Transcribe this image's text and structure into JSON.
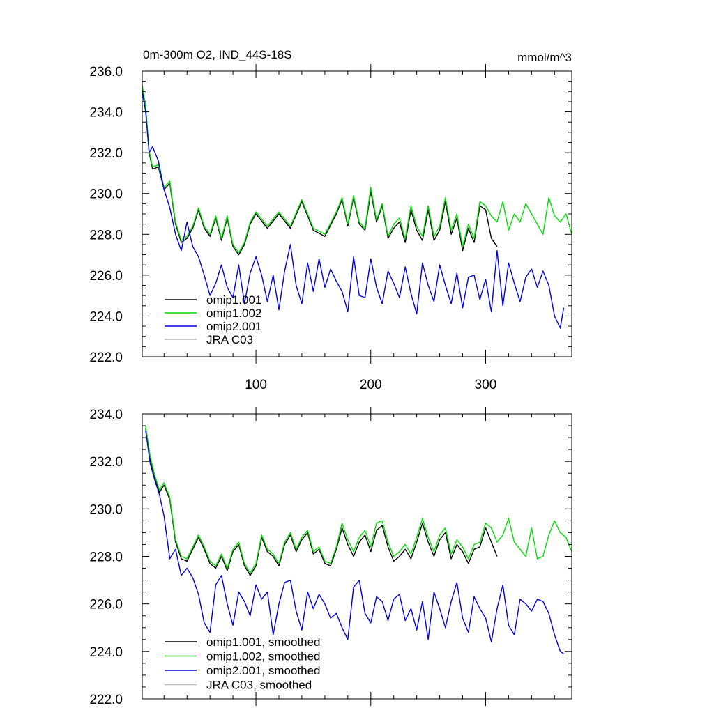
{
  "chart_data": [
    {
      "type": "line",
      "title": "0m-300m O2, IND_44S-18S",
      "units": "mmol/m^3",
      "ylim": [
        222.0,
        236.0
      ],
      "xlim": [
        1,
        375
      ],
      "yticks": [
        "222.0",
        "224.0",
        "226.0",
        "228.0",
        "230.0",
        "232.0",
        "234.0",
        "236.0"
      ],
      "xticks": [
        "100",
        "200",
        "300"
      ],
      "legend_position": "bottom-left",
      "series": [
        {
          "name": "omip1.001",
          "color": "#000000",
          "x": [
            1,
            4,
            7,
            10,
            15,
            20,
            25,
            30,
            35,
            40,
            45,
            50,
            55,
            60,
            65,
            70,
            75,
            80,
            85,
            90,
            95,
            100,
            110,
            120,
            130,
            140,
            150,
            160,
            170,
            175,
            180,
            185,
            190,
            195,
            200,
            205,
            210,
            215,
            220,
            225,
            230,
            235,
            240,
            245,
            250,
            255,
            260,
            265,
            270,
            275,
            280,
            285,
            290,
            295,
            300,
            305,
            310
          ],
          "values": [
            235.2,
            234.2,
            232.0,
            231.2,
            231.3,
            230.2,
            230.5,
            228.5,
            227.6,
            227.8,
            228.3,
            229.2,
            228.3,
            227.9,
            228.8,
            227.7,
            228.8,
            227.4,
            227.0,
            227.5,
            228.5,
            229.0,
            228.3,
            229.0,
            228.3,
            229.6,
            228.2,
            227.9,
            229.0,
            229.7,
            228.4,
            229.8,
            228.5,
            228.2,
            230.1,
            228.6,
            229.4,
            227.8,
            228.3,
            228.6,
            227.6,
            229.2,
            228.2,
            227.7,
            229.2,
            227.7,
            228.2,
            229.6,
            228.0,
            228.8,
            227.2,
            228.3,
            227.6,
            229.4,
            229.2,
            227.8,
            227.4
          ]
        },
        {
          "name": "omip1.002",
          "color": "#00dd00",
          "x": [
            1,
            4,
            7,
            10,
            15,
            20,
            25,
            30,
            35,
            40,
            45,
            50,
            55,
            60,
            65,
            70,
            75,
            80,
            85,
            90,
            95,
            100,
            110,
            120,
            130,
            140,
            150,
            160,
            170,
            175,
            180,
            185,
            190,
            195,
            200,
            205,
            210,
            215,
            220,
            225,
            230,
            235,
            240,
            245,
            250,
            255,
            260,
            265,
            270,
            275,
            280,
            285,
            290,
            295,
            300,
            305,
            310,
            315,
            320,
            325,
            330,
            335,
            340,
            345,
            350,
            355,
            360,
            365,
            370,
            375
          ],
          "values": [
            235.3,
            234.3,
            232.1,
            231.3,
            231.4,
            230.3,
            230.6,
            228.6,
            227.7,
            227.9,
            228.4,
            229.3,
            228.4,
            228.0,
            228.9,
            227.8,
            228.9,
            227.5,
            227.1,
            227.6,
            228.6,
            229.1,
            228.4,
            229.1,
            228.4,
            229.7,
            228.3,
            228.0,
            229.1,
            229.8,
            228.5,
            229.9,
            228.6,
            228.3,
            230.3,
            228.7,
            229.5,
            227.9,
            228.5,
            228.8,
            227.8,
            229.4,
            228.4,
            227.9,
            229.4,
            227.9,
            228.4,
            229.8,
            228.2,
            229.0,
            227.4,
            228.5,
            227.8,
            229.6,
            229.4,
            228.9,
            228.6,
            229.6,
            228.2,
            229.0,
            228.6,
            229.5,
            229.0,
            228.5,
            228.0,
            229.8,
            228.9,
            228.6,
            229.0,
            228.0
          ]
        },
        {
          "name": "omip2.001",
          "color": "#0000dd",
          "x": [
            1,
            4,
            7,
            10,
            15,
            20,
            25,
            30,
            35,
            40,
            45,
            50,
            55,
            60,
            65,
            70,
            75,
            80,
            85,
            90,
            95,
            100,
            105,
            110,
            115,
            120,
            125,
            130,
            135,
            140,
            145,
            150,
            155,
            160,
            165,
            170,
            175,
            180,
            185,
            190,
            195,
            200,
            205,
            210,
            215,
            220,
            225,
            230,
            235,
            240,
            245,
            250,
            255,
            260,
            265,
            270,
            275,
            280,
            285,
            290,
            295,
            300,
            305,
            310,
            315,
            320,
            325,
            330,
            335,
            340,
            345,
            350,
            355,
            360,
            365,
            368
          ],
          "values": [
            235.0,
            234.0,
            232.0,
            232.3,
            231.6,
            230.2,
            229.3,
            228.0,
            227.2,
            228.6,
            227.4,
            226.9,
            226.0,
            225.0,
            225.6,
            226.5,
            225.4,
            224.9,
            226.5,
            224.6,
            226.1,
            226.9,
            226.0,
            224.7,
            226.0,
            224.3,
            226.2,
            227.5,
            225.5,
            224.6,
            226.6,
            225.2,
            226.8,
            225.4,
            226.3,
            225.7,
            225.2,
            224.2,
            226.9,
            225.0,
            224.9,
            226.8,
            225.4,
            224.6,
            226.2,
            225.6,
            224.9,
            226.4,
            225.1,
            224.1,
            226.6,
            225.5,
            224.7,
            226.5,
            225.5,
            224.6,
            226.1,
            224.4,
            225.9,
            226.0,
            224.8,
            225.8,
            224.2,
            227.2,
            224.5,
            226.6,
            225.6,
            224.7,
            225.9,
            226.3,
            225.4,
            226.2,
            225.5,
            224.0,
            223.4,
            224.4
          ]
        },
        {
          "name": "JRA C03",
          "color": "#b8b8b8",
          "x": [],
          "values": []
        }
      ]
    },
    {
      "type": "line",
      "title": "",
      "ylim": [
        222.0,
        234.0
      ],
      "xlim": [
        1,
        375
      ],
      "yticks": [
        "222.0",
        "224.0",
        "226.0",
        "228.0",
        "230.0",
        "232.0",
        "234.0"
      ],
      "legend_position": "bottom-left",
      "series": [
        {
          "name": "omip1.001, smoothed",
          "color": "#000000",
          "x": [
            4,
            8,
            12,
            16,
            20,
            25,
            30,
            35,
            40,
            45,
            50,
            55,
            60,
            65,
            70,
            75,
            80,
            85,
            90,
            95,
            100,
            105,
            110,
            115,
            120,
            125,
            130,
            135,
            140,
            145,
            150,
            155,
            160,
            165,
            170,
            175,
            180,
            185,
            190,
            195,
            200,
            205,
            210,
            215,
            220,
            225,
            230,
            235,
            240,
            245,
            250,
            255,
            260,
            265,
            270,
            275,
            280,
            285,
            290,
            295,
            300,
            305,
            310
          ],
          "values": [
            233.4,
            232.1,
            231.3,
            230.7,
            231.0,
            230.4,
            228.6,
            227.9,
            227.8,
            228.3,
            228.8,
            228.3,
            227.7,
            227.5,
            228.0,
            227.4,
            228.2,
            228.5,
            227.6,
            227.2,
            227.6,
            228.8,
            228.2,
            228.0,
            227.6,
            228.5,
            228.9,
            228.2,
            228.7,
            229.0,
            228.1,
            228.3,
            227.7,
            227.6,
            228.3,
            229.2,
            228.5,
            228.0,
            228.6,
            228.9,
            228.2,
            229.1,
            229.3,
            228.4,
            227.8,
            228.0,
            228.3,
            227.9,
            228.6,
            229.4,
            228.6,
            228.0,
            228.7,
            229.0,
            227.9,
            228.5,
            228.2,
            227.7,
            228.3,
            228.4,
            229.2,
            228.6,
            228.0
          ]
        },
        {
          "name": "omip1.002, smoothed",
          "color": "#00dd00",
          "x": [
            4,
            8,
            12,
            16,
            20,
            25,
            30,
            35,
            40,
            45,
            50,
            55,
            60,
            65,
            70,
            75,
            80,
            85,
            90,
            95,
            100,
            105,
            110,
            115,
            120,
            125,
            130,
            135,
            140,
            145,
            150,
            155,
            160,
            165,
            170,
            175,
            180,
            185,
            190,
            195,
            200,
            205,
            210,
            215,
            220,
            225,
            230,
            235,
            240,
            245,
            250,
            255,
            260,
            265,
            270,
            275,
            280,
            285,
            290,
            295,
            300,
            305,
            310,
            315,
            320,
            325,
            330,
            335,
            340,
            345,
            350,
            355,
            360,
            365,
            370,
            375
          ],
          "values": [
            233.5,
            232.2,
            231.4,
            230.8,
            231.1,
            230.5,
            228.7,
            228.0,
            227.9,
            228.4,
            228.9,
            228.4,
            227.8,
            227.6,
            228.1,
            227.5,
            228.3,
            228.6,
            227.7,
            227.3,
            227.7,
            228.9,
            228.3,
            228.1,
            227.7,
            228.6,
            229.0,
            228.3,
            228.8,
            229.1,
            228.2,
            228.4,
            227.8,
            227.7,
            228.4,
            229.4,
            228.7,
            228.2,
            228.8,
            229.1,
            228.4,
            229.4,
            229.5,
            228.6,
            228.0,
            228.2,
            228.5,
            228.1,
            228.8,
            229.6,
            228.8,
            228.2,
            228.9,
            229.2,
            228.1,
            228.7,
            228.4,
            227.9,
            228.5,
            228.6,
            229.4,
            229.2,
            228.6,
            228.9,
            229.6,
            228.6,
            228.3,
            228.0,
            229.2,
            227.9,
            228.0,
            228.9,
            229.5,
            229.0,
            228.8,
            228.2
          ]
        },
        {
          "name": "omip2.001, smoothed",
          "color": "#0000dd",
          "x": [
            4,
            8,
            12,
            16,
            20,
            25,
            30,
            35,
            40,
            45,
            50,
            55,
            60,
            65,
            70,
            75,
            80,
            85,
            90,
            95,
            100,
            105,
            110,
            115,
            120,
            125,
            130,
            135,
            140,
            145,
            150,
            155,
            160,
            165,
            170,
            175,
            180,
            185,
            190,
            195,
            200,
            205,
            210,
            215,
            220,
            225,
            230,
            235,
            240,
            245,
            250,
            255,
            260,
            265,
            270,
            275,
            280,
            285,
            290,
            295,
            300,
            305,
            310,
            315,
            320,
            325,
            330,
            335,
            340,
            345,
            350,
            355,
            360,
            365,
            368
          ],
          "values": [
            233.3,
            231.9,
            231.2,
            230.6,
            229.7,
            227.9,
            228.3,
            227.2,
            227.5,
            227.1,
            226.4,
            225.2,
            224.8,
            226.8,
            227.2,
            226.0,
            225.1,
            226.5,
            226.1,
            225.5,
            226.8,
            226.2,
            226.5,
            224.7,
            226.0,
            226.9,
            227.0,
            225.7,
            224.9,
            226.5,
            225.8,
            226.4,
            226.0,
            225.4,
            225.6,
            225.0,
            224.5,
            226.7,
            227.0,
            225.6,
            225.2,
            226.3,
            226.1,
            225.3,
            226.2,
            226.4,
            225.3,
            225.8,
            224.9,
            226.1,
            224.5,
            226.5,
            225.8,
            225.0,
            226.1,
            226.9,
            225.4,
            224.8,
            226.3,
            225.8,
            225.4,
            224.4,
            225.8,
            226.8,
            225.1,
            224.7,
            226.2,
            226.0,
            225.7,
            226.2,
            226.1,
            225.6,
            224.7,
            224.0,
            223.9
          ]
        },
        {
          "name": "JRA C03, smoothed",
          "color": "#b8b8b8",
          "x": [],
          "values": []
        }
      ]
    }
  ]
}
